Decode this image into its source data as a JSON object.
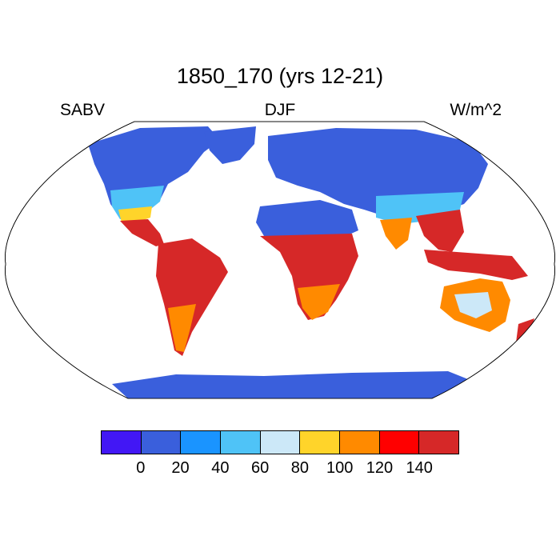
{
  "title": "1850_170 (yrs 12-21)",
  "left_label": "SABV",
  "center_label": "DJF",
  "right_label": "W/m^2",
  "colorbar": {
    "colors": [
      "#4217f5",
      "#3a5fdc",
      "#1a94ff",
      "#4fc3f7",
      "#cce8f8",
      "#ffd42a",
      "#ff8a00",
      "#ff0000",
      "#d62828"
    ],
    "ticks": [
      "0",
      "20",
      "40",
      "60",
      "80",
      "100",
      "120",
      "140"
    ]
  },
  "map": {
    "projection": "Robinson",
    "ocean_color": "#ffffff",
    "coastline_color": "#000000"
  }
}
